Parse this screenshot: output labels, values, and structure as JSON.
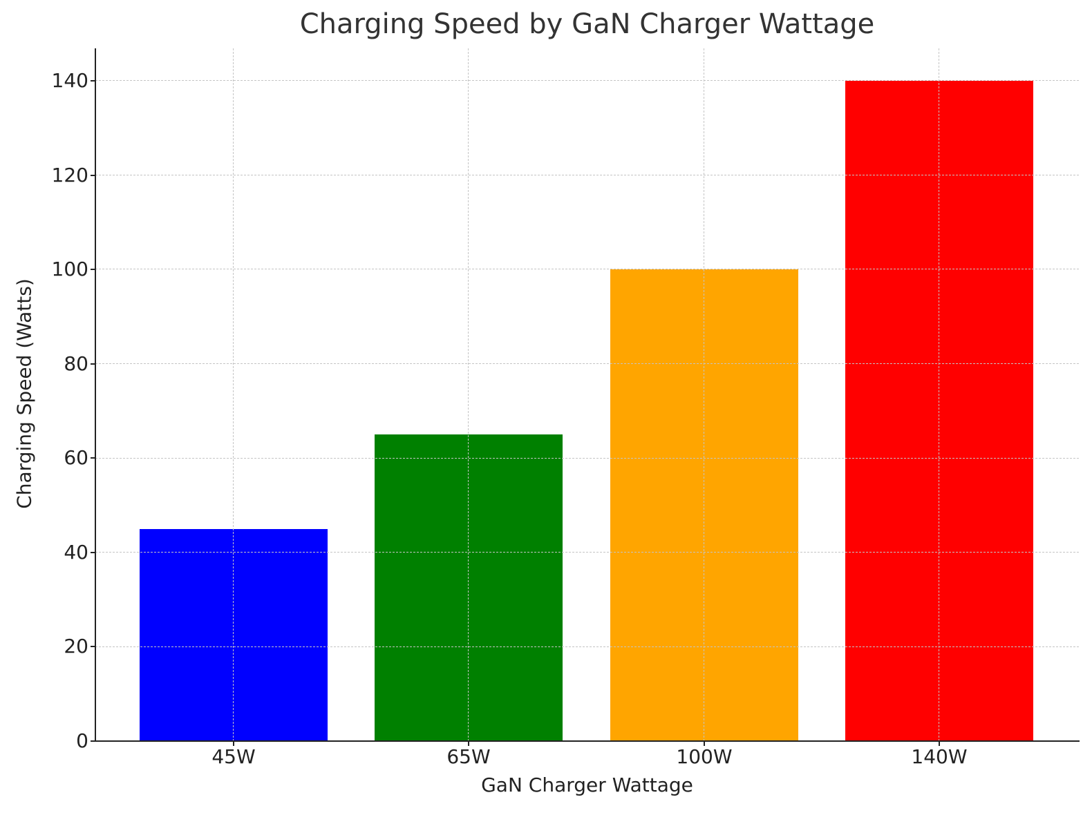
{
  "chart_data": {
    "type": "bar",
    "title": "Charging Speed by GaN Charger Wattage",
    "xlabel": "GaN Charger Wattage",
    "ylabel": "Charging Speed (Watts)",
    "categories": [
      "45W",
      "65W",
      "100W",
      "140W"
    ],
    "values": [
      45,
      65,
      100,
      140
    ],
    "colors": [
      "#0000ff",
      "#008000",
      "#ffa500",
      "#ff0000"
    ],
    "ylim": [
      0,
      147
    ],
    "yticks": [
      0,
      20,
      40,
      60,
      80,
      100,
      120,
      140
    ],
    "grid": true,
    "grid_style": "dashed",
    "legend": null
  },
  "labels": {
    "title": "Charging Speed by GaN Charger Wattage",
    "xlabel": "GaN Charger Wattage",
    "ylabel": "Charging Speed (Watts)",
    "yticks": [
      "0",
      "20",
      "40",
      "60",
      "80",
      "100",
      "120",
      "140"
    ],
    "xticks": [
      "45W",
      "65W",
      "100W",
      "140W"
    ]
  }
}
